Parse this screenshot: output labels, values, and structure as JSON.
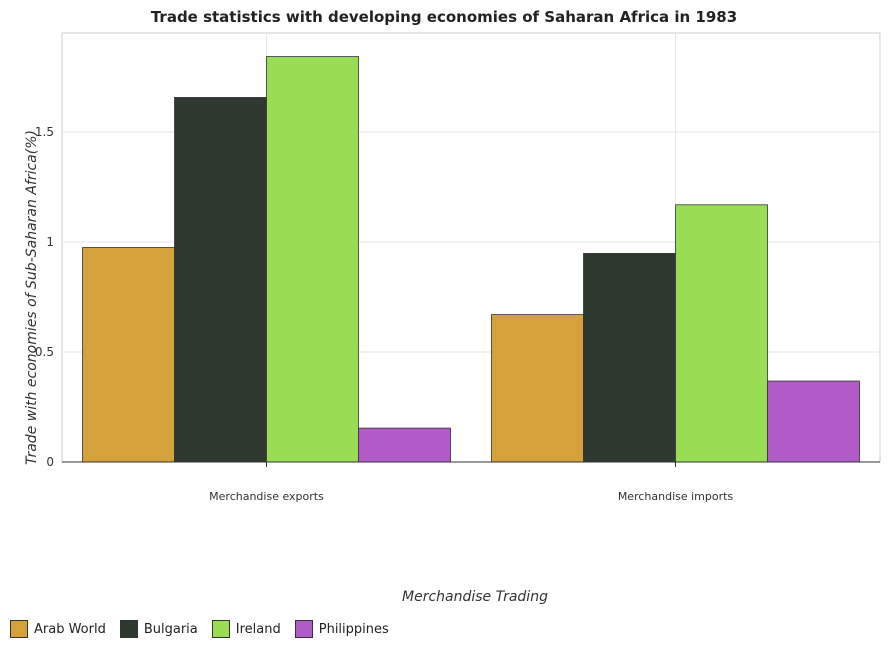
{
  "chart_data": {
    "type": "bar",
    "title": "Trade statistics with developing economies of Saharan Africa in 1983",
    "xlabel": "Merchandise Trading",
    "ylabel": "Trade with economies of Sub-Saharan Africa(%)",
    "categories": [
      "Merchandise exports",
      "Merchandise imports"
    ],
    "series": [
      {
        "name": "Arab World",
        "color": "#d4a13a",
        "values": [
          0.975,
          0.67
        ]
      },
      {
        "name": "Bulgaria",
        "color": "#2e3a2f",
        "values": [
          1.657,
          0.948
        ]
      },
      {
        "name": "Ireland",
        "color": "#99dd55",
        "values": [
          1.843,
          1.169
        ]
      },
      {
        "name": "Philippines",
        "color": "#b05bc8",
        "values": [
          0.154,
          0.368
        ]
      }
    ],
    "yticks": [
      0,
      0.5,
      1,
      1.5
    ],
    "ytick_labels": [
      "0",
      "0.5",
      "1",
      "1.5"
    ],
    "ylim": [
      0,
      1.95
    ],
    "grid": true,
    "legend_position": "bottom-left"
  }
}
